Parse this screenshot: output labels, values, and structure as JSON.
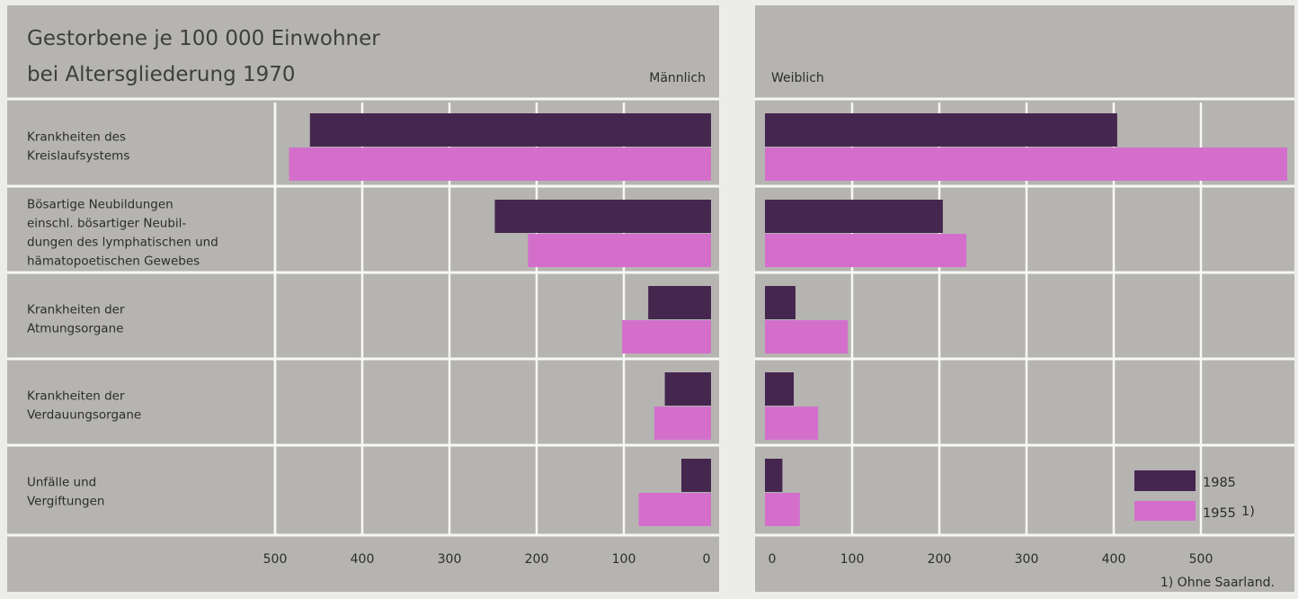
{
  "title_lines": [
    "Gestorbene je 100 000 Einwohner",
    "bei Altersgliederung 1970"
  ],
  "panels": {
    "male_label": "Männlich",
    "female_label": "Weiblich"
  },
  "footnote": "1) Ohne Saarland.",
  "colors": {
    "panel_bg": "#b5b4b1",
    "grid": "#f7f7f5",
    "page_bg": "#ececea",
    "series_1985": "#45264f",
    "series_1955": "#d36fcb"
  },
  "chart_data": {
    "type": "bar",
    "orientation": "horizontal",
    "layout": "back-to-back",
    "title": "Gestorbene je 100 000 Einwohner bei Altersgliederung 1970",
    "categories": [
      [
        "Krankheiten des",
        "Kreislaufsystems"
      ],
      [
        "Bösartige Neubildungen",
        "einschl. bösartiger Neubil-",
        "dungen des lymphatischen und",
        "hämatopoetischen Gewebes"
      ],
      [
        "Krankheiten der",
        "Atmungsorgane"
      ],
      [
        "Krankheiten der",
        "Verdauungsorgane"
      ],
      [
        "Unfälle und",
        "Vergiftungen"
      ]
    ],
    "male": {
      "ticks": [
        "500",
        "400",
        "300",
        "200",
        "100",
        "0"
      ],
      "xlim": [
        0,
        500
      ],
      "series": [
        {
          "name": "1985",
          "values": [
            460,
            248,
            72,
            53,
            34
          ]
        },
        {
          "name": "1955 1)",
          "values": [
            484,
            210,
            102,
            65,
            83
          ]
        }
      ]
    },
    "female": {
      "ticks": [
        "0",
        "100",
        "200",
        "300",
        "400",
        "500"
      ],
      "xlim": [
        0,
        600
      ],
      "series": [
        {
          "name": "1985",
          "values": [
            404,
            204,
            35,
            33,
            20
          ]
        },
        {
          "name": "1955 1)",
          "values": [
            600,
            231,
            95,
            61,
            40
          ]
        }
      ]
    },
    "legend": {
      "position": "bottom-right",
      "entries": [
        {
          "label": "1985",
          "series": "1985"
        },
        {
          "label": "1955",
          "note": "1)",
          "series": "1955"
        }
      ]
    },
    "grid": true
  }
}
